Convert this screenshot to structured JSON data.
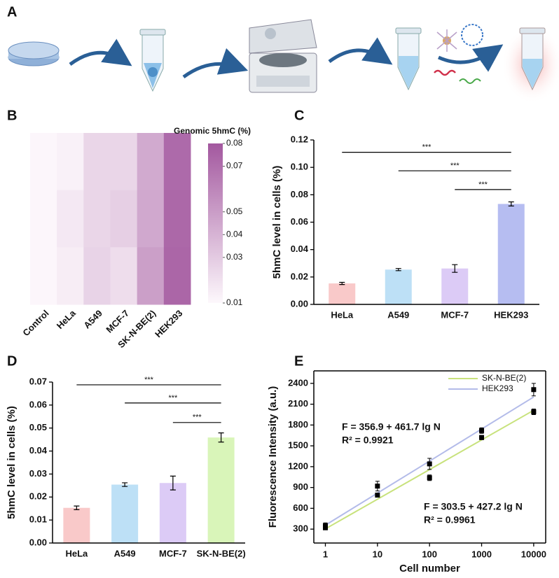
{
  "panel_labels": [
    "A",
    "B",
    "C",
    "D",
    "E"
  ],
  "chart_data": [
    {
      "type": "heatmap",
      "categories": [
        "Control",
        "HeLa",
        "A549",
        "MCF-7",
        "SK-N-BE(2)",
        "HEK293"
      ],
      "values": [
        [
          0.011,
          0.013,
          0.025,
          0.025,
          0.044,
          0.072
        ],
        [
          0.011,
          0.017,
          0.025,
          0.028,
          0.045,
          0.073
        ],
        [
          0.011,
          0.015,
          0.026,
          0.022,
          0.049,
          0.074
        ]
      ],
      "colorbar_title": "Genomic 5hmC (%)",
      "clim": [
        0.01,
        0.08
      ],
      "cticks": [
        0.08,
        0.07,
        0.05,
        0.04,
        0.03,
        0.01
      ],
      "colors": [
        "#fdf8fc",
        "#a3589f"
      ]
    },
    {
      "type": "bar",
      "ylabel": "5hmC level in cells (%)",
      "categories": [
        "HeLa",
        "A549",
        "MCF-7",
        "HEK293"
      ],
      "values": [
        0.0153,
        0.0254,
        0.0262,
        0.0733
      ],
      "errors": [
        0.0008,
        0.0008,
        0.0028,
        0.0015
      ],
      "colors": [
        "#f9c9c9",
        "#bde0f6",
        "#dccbf6",
        "#b6bdf1"
      ],
      "ylim": [
        0,
        0.12
      ],
      "yticks": [
        {
          "value": 0,
          "label": "0.00"
        },
        0.02,
        0.04,
        0.06,
        0.08,
        {
          "value": 0.1,
          "label": "0.10"
        },
        0.12
      ],
      "annotations": [
        {
          "text": "***",
          "between": [
            "HeLa",
            "HEK293"
          ],
          "y": 0.111
        },
        {
          "text": "***",
          "between": [
            "A549",
            "HEK293"
          ],
          "y": 0.0975
        },
        {
          "text": "***",
          "between": [
            "MCF-7",
            "HEK293"
          ],
          "y": 0.0838
        }
      ]
    },
    {
      "type": "bar",
      "ylabel": "5hmC level in cells (%)",
      "categories": [
        "HeLa",
        "A549",
        "MCF-7",
        "SK-N-BE(2)"
      ],
      "values": [
        0.0153,
        0.0254,
        0.0261,
        0.0459
      ],
      "errors": [
        0.0008,
        0.0008,
        0.003,
        0.002
      ],
      "colors": [
        "#f9c9c9",
        "#bde0f6",
        "#dccbf6",
        "#d9f5b9"
      ],
      "ylim": [
        0,
        0.07
      ],
      "yticks": [
        {
          "value": 0,
          "label": "0.00"
        },
        0.01,
        0.02,
        0.03,
        0.04,
        0.05,
        0.06,
        0.07
      ],
      "annotations": [
        {
          "text": "***",
          "between": [
            "HeLa",
            "SK-N-BE(2)"
          ],
          "y": 0.0688
        },
        {
          "text": "***",
          "between": [
            "A549",
            "SK-N-BE(2)"
          ],
          "y": 0.0609
        },
        {
          "text": "***",
          "between": [
            "MCF-7",
            "SK-N-BE(2)"
          ],
          "y": 0.0524
        }
      ]
    },
    {
      "type": "scatter",
      "xlabel": "Cell number",
      "ylabel": "Fluorescence Intensity (a.u.)",
      "xscale": "log",
      "xlim": [
        0.6,
        17000
      ],
      "xticks": [
        1,
        10,
        100,
        1000,
        10000
      ],
      "ylim": [
        100,
        2580
      ],
      "yticks": [
        300,
        600,
        900,
        1200,
        1500,
        1800,
        2100,
        2400
      ],
      "legend": "upper right",
      "series": [
        {
          "name": "SK-N-BE(2)",
          "color": "#c8e27c",
          "x": [
            1,
            10,
            100,
            1000,
            10000
          ],
          "values": [
            320,
            790,
            1040,
            1620,
            1990
          ],
          "errors": [
            30,
            30,
            40,
            30,
            40
          ],
          "fit": {
            "intercept": 303.5,
            "slope": 427.2
          },
          "equation": "F = 303.5 + 427.2 lg N",
          "r2": "R² = 0.9961"
        },
        {
          "name": "HEK293",
          "color": "#b3bbe9",
          "x": [
            1,
            10,
            100,
            1000,
            10000
          ],
          "values": [
            350,
            920,
            1240,
            1720,
            2310
          ],
          "errors": [
            40,
            70,
            80,
            40,
            90
          ],
          "fit": {
            "intercept": 356.9,
            "slope": 461.7
          },
          "equation": "F = 356.9 + 461.7 lg N",
          "r2": "R² = 0.9921"
        }
      ]
    }
  ]
}
